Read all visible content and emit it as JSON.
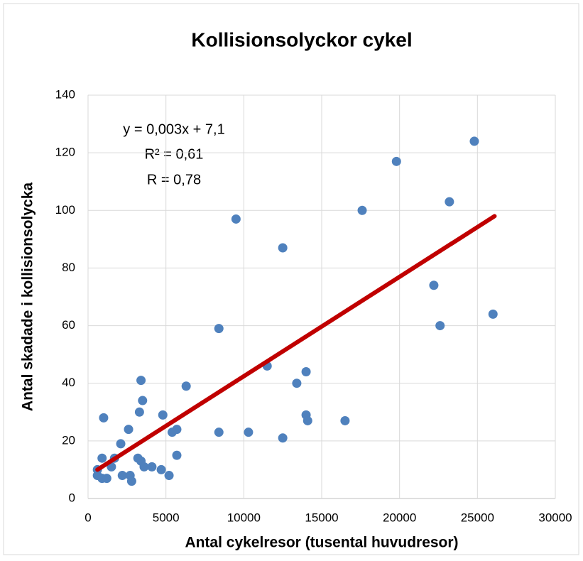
{
  "chart_data": {
    "type": "scatter",
    "title": "Kollisionsolyckor cykel",
    "x_label": "Antal cykelresor (tusental huvudresor)",
    "y_label": "Antal skadade i kollisionsolycka",
    "annotations": [
      "y = 0,003x + 7,1",
      "R² = 0,61",
      "R = 0,78"
    ],
    "xlim": [
      0,
      30000
    ],
    "xticks": [
      0,
      5000,
      10000,
      15000,
      20000,
      25000,
      30000
    ],
    "ylim": [
      0,
      140
    ],
    "yticks": [
      0,
      20,
      40,
      60,
      80,
      100,
      120,
      140
    ],
    "grid": true,
    "series": [
      {
        "color": "#4f81bd",
        "x": [
          24800,
          19800,
          23200,
          17600,
          9500,
          12500,
          22200,
          22600,
          26000,
          8400,
          11500,
          14000,
          13400,
          14000,
          14100,
          16500,
          10300,
          8400,
          12500,
          6300,
          3400,
          3500,
          3300,
          4800,
          2600,
          5700,
          5400,
          1000,
          2100,
          5700,
          1700,
          900,
          3200,
          3400,
          1500,
          3600,
          4100,
          600,
          4700,
          2200,
          2700,
          5200,
          600,
          2800,
          900,
          1200
        ],
        "values": [
          124,
          117,
          103,
          100,
          97,
          87,
          74,
          60,
          64,
          59,
          46,
          44,
          40,
          29,
          27,
          27,
          23,
          23,
          21,
          39,
          41,
          34,
          30,
          29,
          24,
          24,
          23,
          28,
          19,
          15,
          14,
          14,
          14,
          13,
          11,
          11,
          11,
          10,
          10,
          8,
          8,
          8,
          8,
          6,
          7,
          7
        ]
      }
    ],
    "trendline": {
      "color": "#c00000",
      "x": [
        600,
        26100
      ],
      "values": [
        10,
        98
      ]
    }
  }
}
